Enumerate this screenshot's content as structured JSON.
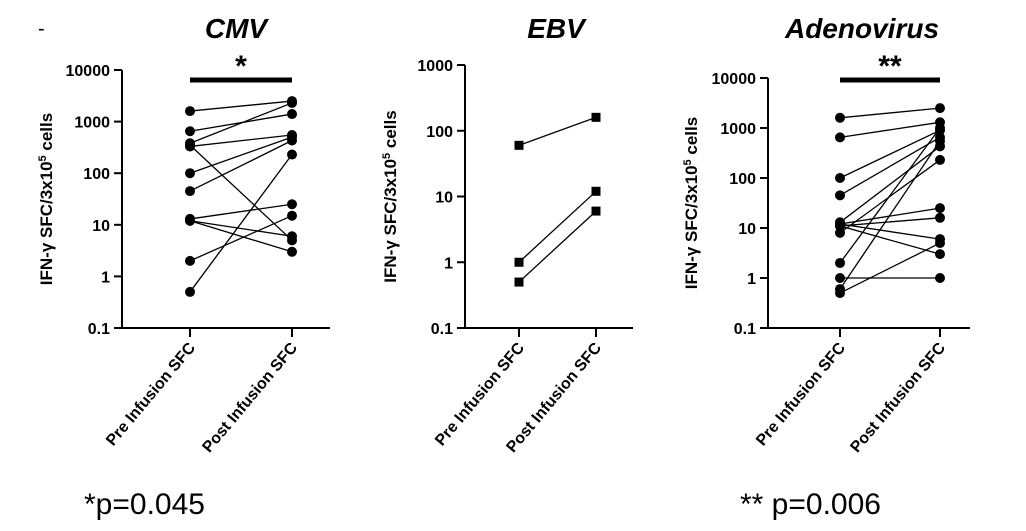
{
  "corner_mark": "-",
  "notes": {
    "cmv": "*p=0.045",
    "adeno": "** p=0.006"
  },
  "chart_data": [
    {
      "type": "scatter",
      "title": "CMV",
      "ylabel": "IFN-γ SFC/3x10⁵ cells",
      "ylabel_parts": {
        "prefix": "IFN-γ SFC/3x10",
        "sup": "5",
        "suffix": " cells"
      },
      "yscale": "log",
      "ylim": [
        0.1,
        10000
      ],
      "yticks": [
        "0.1",
        "1",
        "10",
        "100",
        "1000",
        "10000"
      ],
      "categories": [
        "Pre Infusion SFC",
        "Post Infusion SFC"
      ],
      "significance": "*",
      "pairs": [
        [
          1600,
          2500
        ],
        [
          650,
          1400
        ],
        [
          380,
          2300
        ],
        [
          330,
          550
        ],
        [
          100,
          500
        ],
        [
          45,
          430
        ],
        [
          13,
          25
        ],
        [
          12,
          6
        ],
        [
          2,
          15
        ],
        [
          0.5,
          230
        ],
        [
          12,
          3
        ],
        [
          350,
          5
        ]
      ]
    },
    {
      "type": "scatter",
      "title": "EBV",
      "ylabel": "IFN-γ SFC/3x10⁵ cells",
      "ylabel_parts": {
        "prefix": "IFN-γ SFC/3x10",
        "sup": "5",
        "suffix": " cells"
      },
      "yscale": "log",
      "ylim": [
        0.1,
        1000
      ],
      "yticks": [
        "0.1",
        "1",
        "10",
        "100",
        "1000"
      ],
      "categories": [
        "Pre Infusion SFC",
        "Post Infusion SFC"
      ],
      "significance": "",
      "marker": "square",
      "pairs": [
        [
          60,
          160
        ],
        [
          1,
          12
        ],
        [
          0.5,
          6
        ]
      ]
    },
    {
      "type": "scatter",
      "title": "Adenovirus",
      "ylabel": "IFN-γ SFC/3x10⁵ cells",
      "ylabel_parts": {
        "prefix": "IFN-γ SFC/3x10",
        "sup": "5",
        "suffix": " cells"
      },
      "yscale": "log",
      "ylim": [
        0.1,
        10000
      ],
      "yticks": [
        "0.1",
        "1",
        "10",
        "100",
        "1000",
        "10000"
      ],
      "categories": [
        "Pre Infusion SFC",
        "Post Infusion SFC"
      ],
      "significance": "**",
      "pairs": [
        [
          1600,
          2500
        ],
        [
          650,
          1300
        ],
        [
          100,
          900
        ],
        [
          45,
          650
        ],
        [
          13,
          430
        ],
        [
          12,
          25
        ],
        [
          11,
          16
        ],
        [
          12,
          6
        ],
        [
          8,
          230
        ],
        [
          2,
          1000
        ],
        [
          0.6,
          550
        ],
        [
          0.5,
          5
        ],
        [
          11,
          3
        ],
        [
          1,
          1
        ]
      ]
    }
  ]
}
